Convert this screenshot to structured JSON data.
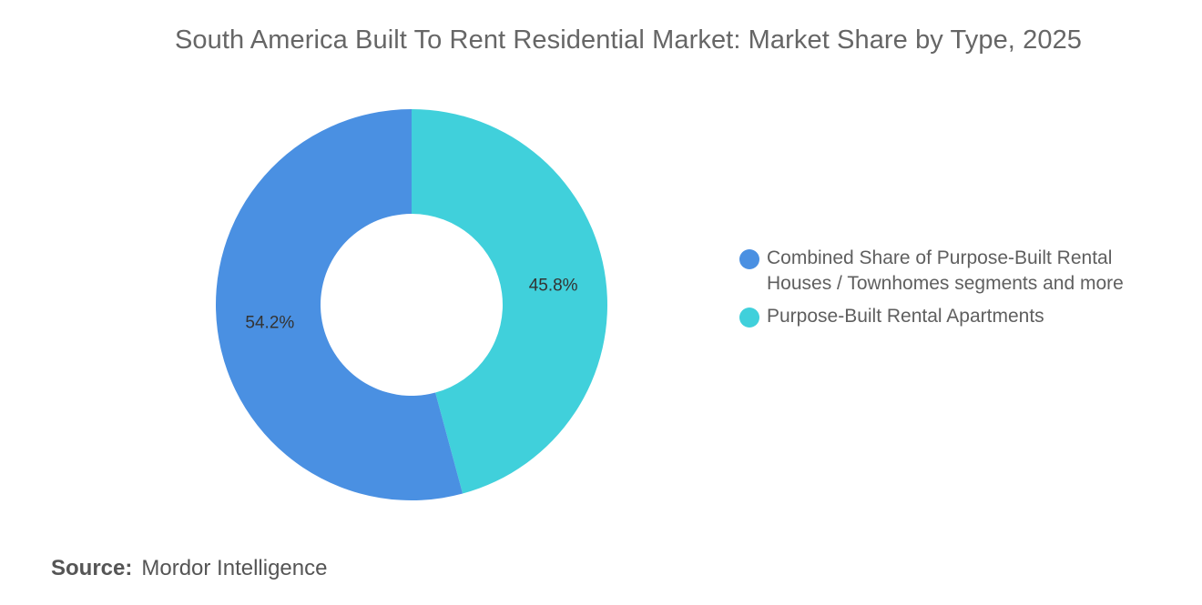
{
  "chart_data": {
    "type": "pie",
    "title": "South America Built To Rent Residential Market: Market Share by Type, 2025",
    "donut": true,
    "slices": [
      {
        "name": "Purpose-Built Rental Apartments",
        "value": 45.8,
        "label": "45.8%",
        "color": "#40d0db"
      },
      {
        "name": "Combined Share of Purpose-Built Rental Houses / Townhomes segments and more",
        "value": 54.2,
        "label": "54.2%",
        "color": "#4a90e2"
      }
    ],
    "legend": {
      "placement": "right",
      "entries": [
        {
          "line1": "Combined Share of Purpose-Built Rental",
          "line2": "Houses / Townhomes segments and more",
          "color": "#4a90e2"
        },
        {
          "line1": "Purpose-Built Rental Apartments",
          "line2": "",
          "color": "#40d0db"
        }
      ]
    }
  },
  "source": {
    "label": "Source:",
    "value": "Mordor Intelligence"
  }
}
